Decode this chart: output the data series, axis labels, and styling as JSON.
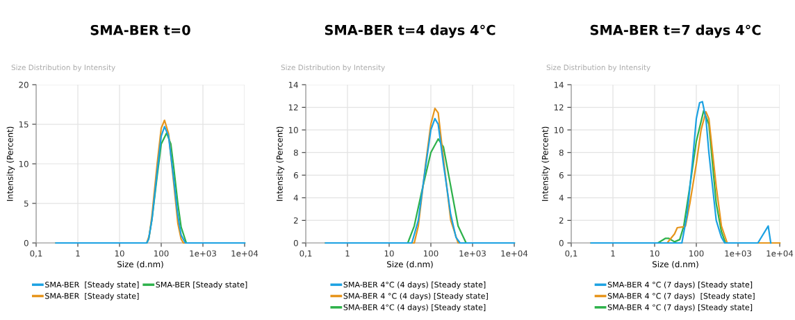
{
  "chart_data": [
    {
      "type": "line",
      "title": "SMA-BER t=0",
      "subtitle": "Size Distribution by Intensity",
      "xlabel": "Size (d.nm)",
      "ylabel": "Intensity (Percent)",
      "log": "x",
      "xlim": [
        0.1,
        10000
      ],
      "xticks": [
        {
          "value": 0.1,
          "label": "0,1"
        },
        1,
        10,
        100,
        {
          "value": 1000,
          "label": "1e+03"
        },
        {
          "value": 10000,
          "label": "1e+04"
        }
      ],
      "ylim": [
        0,
        20
      ],
      "yticks": [
        0,
        5,
        10,
        15,
        20
      ],
      "grid": true,
      "legend": "bottom",
      "marker": "none",
      "line_style": "solid",
      "series": [
        {
          "name": "SMA-BER  [Steady state]",
          "color": "#1ba1e2",
          "x": [
            0.3,
            45,
            50,
            60,
            80,
            100,
            120,
            150,
            200,
            250,
            300,
            380,
            10000
          ],
          "values": [
            0,
            0,
            0.5,
            3,
            9,
            13.5,
            14.7,
            13.5,
            8,
            3.5,
            1,
            0,
            0
          ]
        },
        {
          "name": "SMA-BER  [Steady state]",
          "color": "#e6951c",
          "x": [
            0.3,
            45,
            52,
            60,
            80,
            100,
            120,
            150,
            200,
            250,
            300,
            340,
            10000
          ],
          "values": [
            0,
            0,
            1,
            3.5,
            10,
            14.5,
            15.5,
            13.8,
            7.5,
            2.5,
            0.5,
            0,
            0
          ]
        },
        {
          "name": "SMA-BER [Steady state]",
          "color": "#2db14a",
          "x": [
            0.3,
            45,
            50,
            60,
            80,
            100,
            135,
            170,
            200,
            250,
            300,
            400,
            10000
          ],
          "values": [
            0,
            0,
            0.5,
            3,
            8.5,
            12.5,
            13.9,
            12.5,
            9.5,
            5,
            2,
            0,
            0
          ]
        }
      ]
    },
    {
      "type": "line",
      "title": "SMA-BER t=4 days 4°C",
      "subtitle": "Size Distribution by Intensity",
      "xlabel": "Size (d.nm)",
      "ylabel": "Intensity (Percent)",
      "log": "x",
      "xlim": [
        0.1,
        10000
      ],
      "xticks": [
        {
          "value": 0.1,
          "label": "0,1"
        },
        1,
        10,
        100,
        {
          "value": 1000,
          "label": "1e+03"
        },
        {
          "value": 10000,
          "label": "1e+04"
        }
      ],
      "ylim": [
        0,
        14
      ],
      "yticks": [
        0,
        2,
        4,
        6,
        8,
        10,
        12,
        14
      ],
      "grid": true,
      "legend": "bottom",
      "marker": "none",
      "line_style": "solid",
      "series": [
        {
          "name": "SMA-BER 4°C (4 days) [Steady state]",
          "color": "#1ba1e2",
          "x": [
            0.3,
            35,
            50,
            70,
            100,
            125,
            150,
            200,
            300,
            400,
            500,
            10000
          ],
          "values": [
            0,
            0,
            2,
            6,
            10,
            11,
            10.5,
            7,
            2.5,
            0.5,
            0,
            0
          ]
        },
        {
          "name": "SMA-BER 4 °C (4 days) [Steady state]",
          "color": "#e6951c",
          "x": [
            0.3,
            40,
            50,
            75,
            100,
            125,
            150,
            200,
            300,
            450,
            10000
          ],
          "values": [
            0,
            0,
            1.5,
            7,
            10.5,
            11.9,
            11.5,
            7.5,
            2,
            0,
            0
          ]
        },
        {
          "name": "SMA-BER 4°C (4 days) [Steady state]",
          "color": "#2db14a",
          "x": [
            0.3,
            28,
            40,
            60,
            100,
            150,
            200,
            300,
            450,
            700,
            10000
          ],
          "values": [
            0,
            0,
            1.5,
            4.5,
            8,
            9.2,
            8.5,
            5,
            1.5,
            0,
            0
          ]
        }
      ]
    },
    {
      "type": "line",
      "title": "SMA-BER t=7 days 4°C",
      "subtitle": "Size Distribution by Intensity",
      "xlabel": "Size (d.nm)",
      "ylabel": "Intensity (Percent)",
      "log": "x",
      "xlim": [
        0.1,
        10000
      ],
      "xticks": [
        {
          "value": 0.1,
          "label": "0,1"
        },
        1,
        10,
        100,
        {
          "value": 1000,
          "label": "1e+03"
        },
        {
          "value": 10000,
          "label": "1e+04"
        }
      ],
      "ylim": [
        0,
        14
      ],
      "yticks": [
        0,
        2,
        4,
        6,
        8,
        10,
        12,
        14
      ],
      "grid": true,
      "legend": "bottom",
      "marker": "none",
      "line_style": "solid",
      "series": [
        {
          "name": "SMA-BER 4 °C (7 days) [Steady state]",
          "color": "#1ba1e2",
          "x": [
            0.3,
            45,
            60,
            80,
            100,
            120,
            140,
            170,
            200,
            300,
            400,
            480,
            3000,
            5300,
            6100
          ],
          "values": [
            0,
            0,
            2.5,
            7,
            11,
            12.4,
            12.5,
            11,
            8,
            2,
            0.5,
            0,
            0,
            1.5,
            0
          ]
        },
        {
          "name": "SMA-BER 4 °C (7 days)  [Steady state]",
          "color": "#e6951c",
          "x": [
            0.3,
            20,
            30,
            35,
            45,
            55,
            70,
            100,
            130,
            170,
            200,
            300,
            400,
            550,
            10000
          ],
          "values": [
            0,
            0,
            0.8,
            1.35,
            1.4,
            1.5,
            3.5,
            7,
            10,
            11.6,
            11,
            5,
            1.5,
            0,
            0
          ]
        },
        {
          "name": "SMA-BER 4 °C (7 days) [Steady state]",
          "color": "#2db14a",
          "x": [
            0.3,
            12,
            18,
            22,
            30,
            40,
            50,
            70,
            100,
            150,
            200,
            300,
            400,
            500,
            10000
          ],
          "values": [
            0,
            0,
            0.4,
            0.4,
            0.1,
            0.3,
            1.5,
            5,
            9,
            11.7,
            10.5,
            3.5,
            1,
            0,
            0
          ]
        }
      ]
    }
  ]
}
